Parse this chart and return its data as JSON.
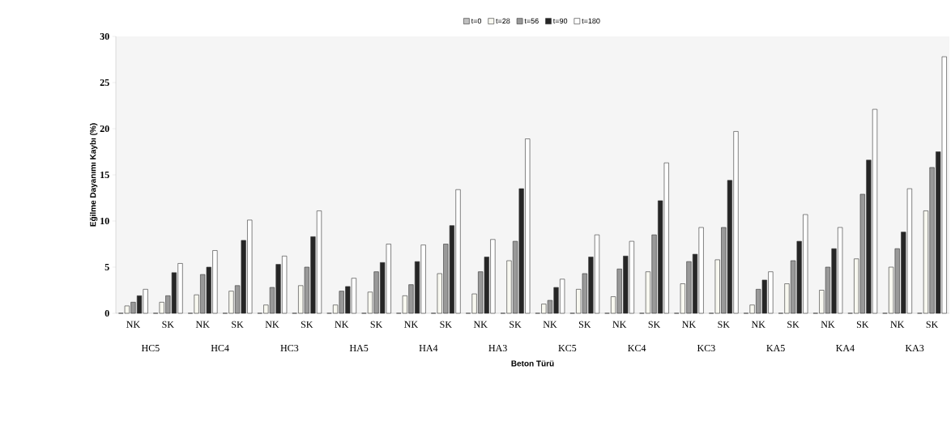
{
  "chart_data": {
    "type": "bar",
    "xlabel": "Beton Türü",
    "ylabel": "Eğilme Dayanımı Kaybı (%)",
    "categories": [
      "NK",
      "SK",
      "NK",
      "SK",
      "NK",
      "SK",
      "NK",
      "SK",
      "NK",
      "SK",
      "NK",
      "SK",
      "NK",
      "SK",
      "NK",
      "SK",
      "NK",
      "SK",
      "NK",
      "SK",
      "NK",
      "SK",
      "NK",
      "SK"
    ],
    "annotations": [
      "HC5",
      "HC4",
      "HC3",
      "HA5",
      "HA4",
      "HA3",
      "KC5",
      "KC4",
      "KC3",
      "KA5",
      "KA4",
      "KA3"
    ],
    "series": [
      {
        "name": "t=0",
        "color": "#c0c0c0",
        "values": [
          0,
          0,
          0,
          0,
          0,
          0,
          0,
          0,
          0,
          0,
          0,
          0,
          0,
          0,
          0,
          0,
          0,
          0,
          0,
          0,
          0,
          0,
          0,
          0
        ]
      },
      {
        "name": "t=28",
        "color": "#f8f8f0",
        "values": [
          0.8,
          1.2,
          2.0,
          2.4,
          0.9,
          3.0,
          0.9,
          2.3,
          1.9,
          4.3,
          2.1,
          5.7,
          1.0,
          2.6,
          1.8,
          4.5,
          3.2,
          5.8,
          0.9,
          3.2,
          2.5,
          5.9,
          5.0,
          11.1
        ]
      },
      {
        "name": "t=56",
        "color": "#999999",
        "values": [
          1.2,
          1.9,
          4.2,
          3.0,
          2.8,
          5.0,
          2.4,
          4.5,
          3.1,
          7.5,
          4.5,
          7.8,
          1.4,
          4.3,
          4.8,
          8.5,
          5.6,
          9.3,
          2.6,
          5.7,
          5.0,
          12.9,
          7.0,
          15.8
        ]
      },
      {
        "name": "t=90",
        "color": "#262626",
        "values": [
          1.9,
          4.4,
          5.0,
          7.9,
          5.3,
          8.3,
          2.9,
          5.5,
          5.6,
          9.5,
          6.1,
          13.5,
          2.8,
          6.1,
          6.2,
          12.2,
          6.4,
          14.4,
          3.6,
          7.8,
          7.0,
          16.6,
          8.8,
          17.5
        ]
      },
      {
        "name": "t=180",
        "color": "#ffffff",
        "values": [
          2.6,
          5.4,
          6.8,
          10.1,
          6.2,
          11.1,
          3.8,
          7.5,
          7.4,
          13.4,
          8.0,
          18.9,
          3.7,
          8.5,
          7.8,
          16.3,
          9.3,
          19.7,
          4.5,
          10.7,
          9.3,
          22.1,
          13.5,
          27.8
        ]
      }
    ],
    "ylim": [
      0,
      30
    ],
    "yticks": [
      0,
      5,
      10,
      15,
      20,
      25,
      30
    ],
    "grid": false,
    "legend": "top"
  }
}
